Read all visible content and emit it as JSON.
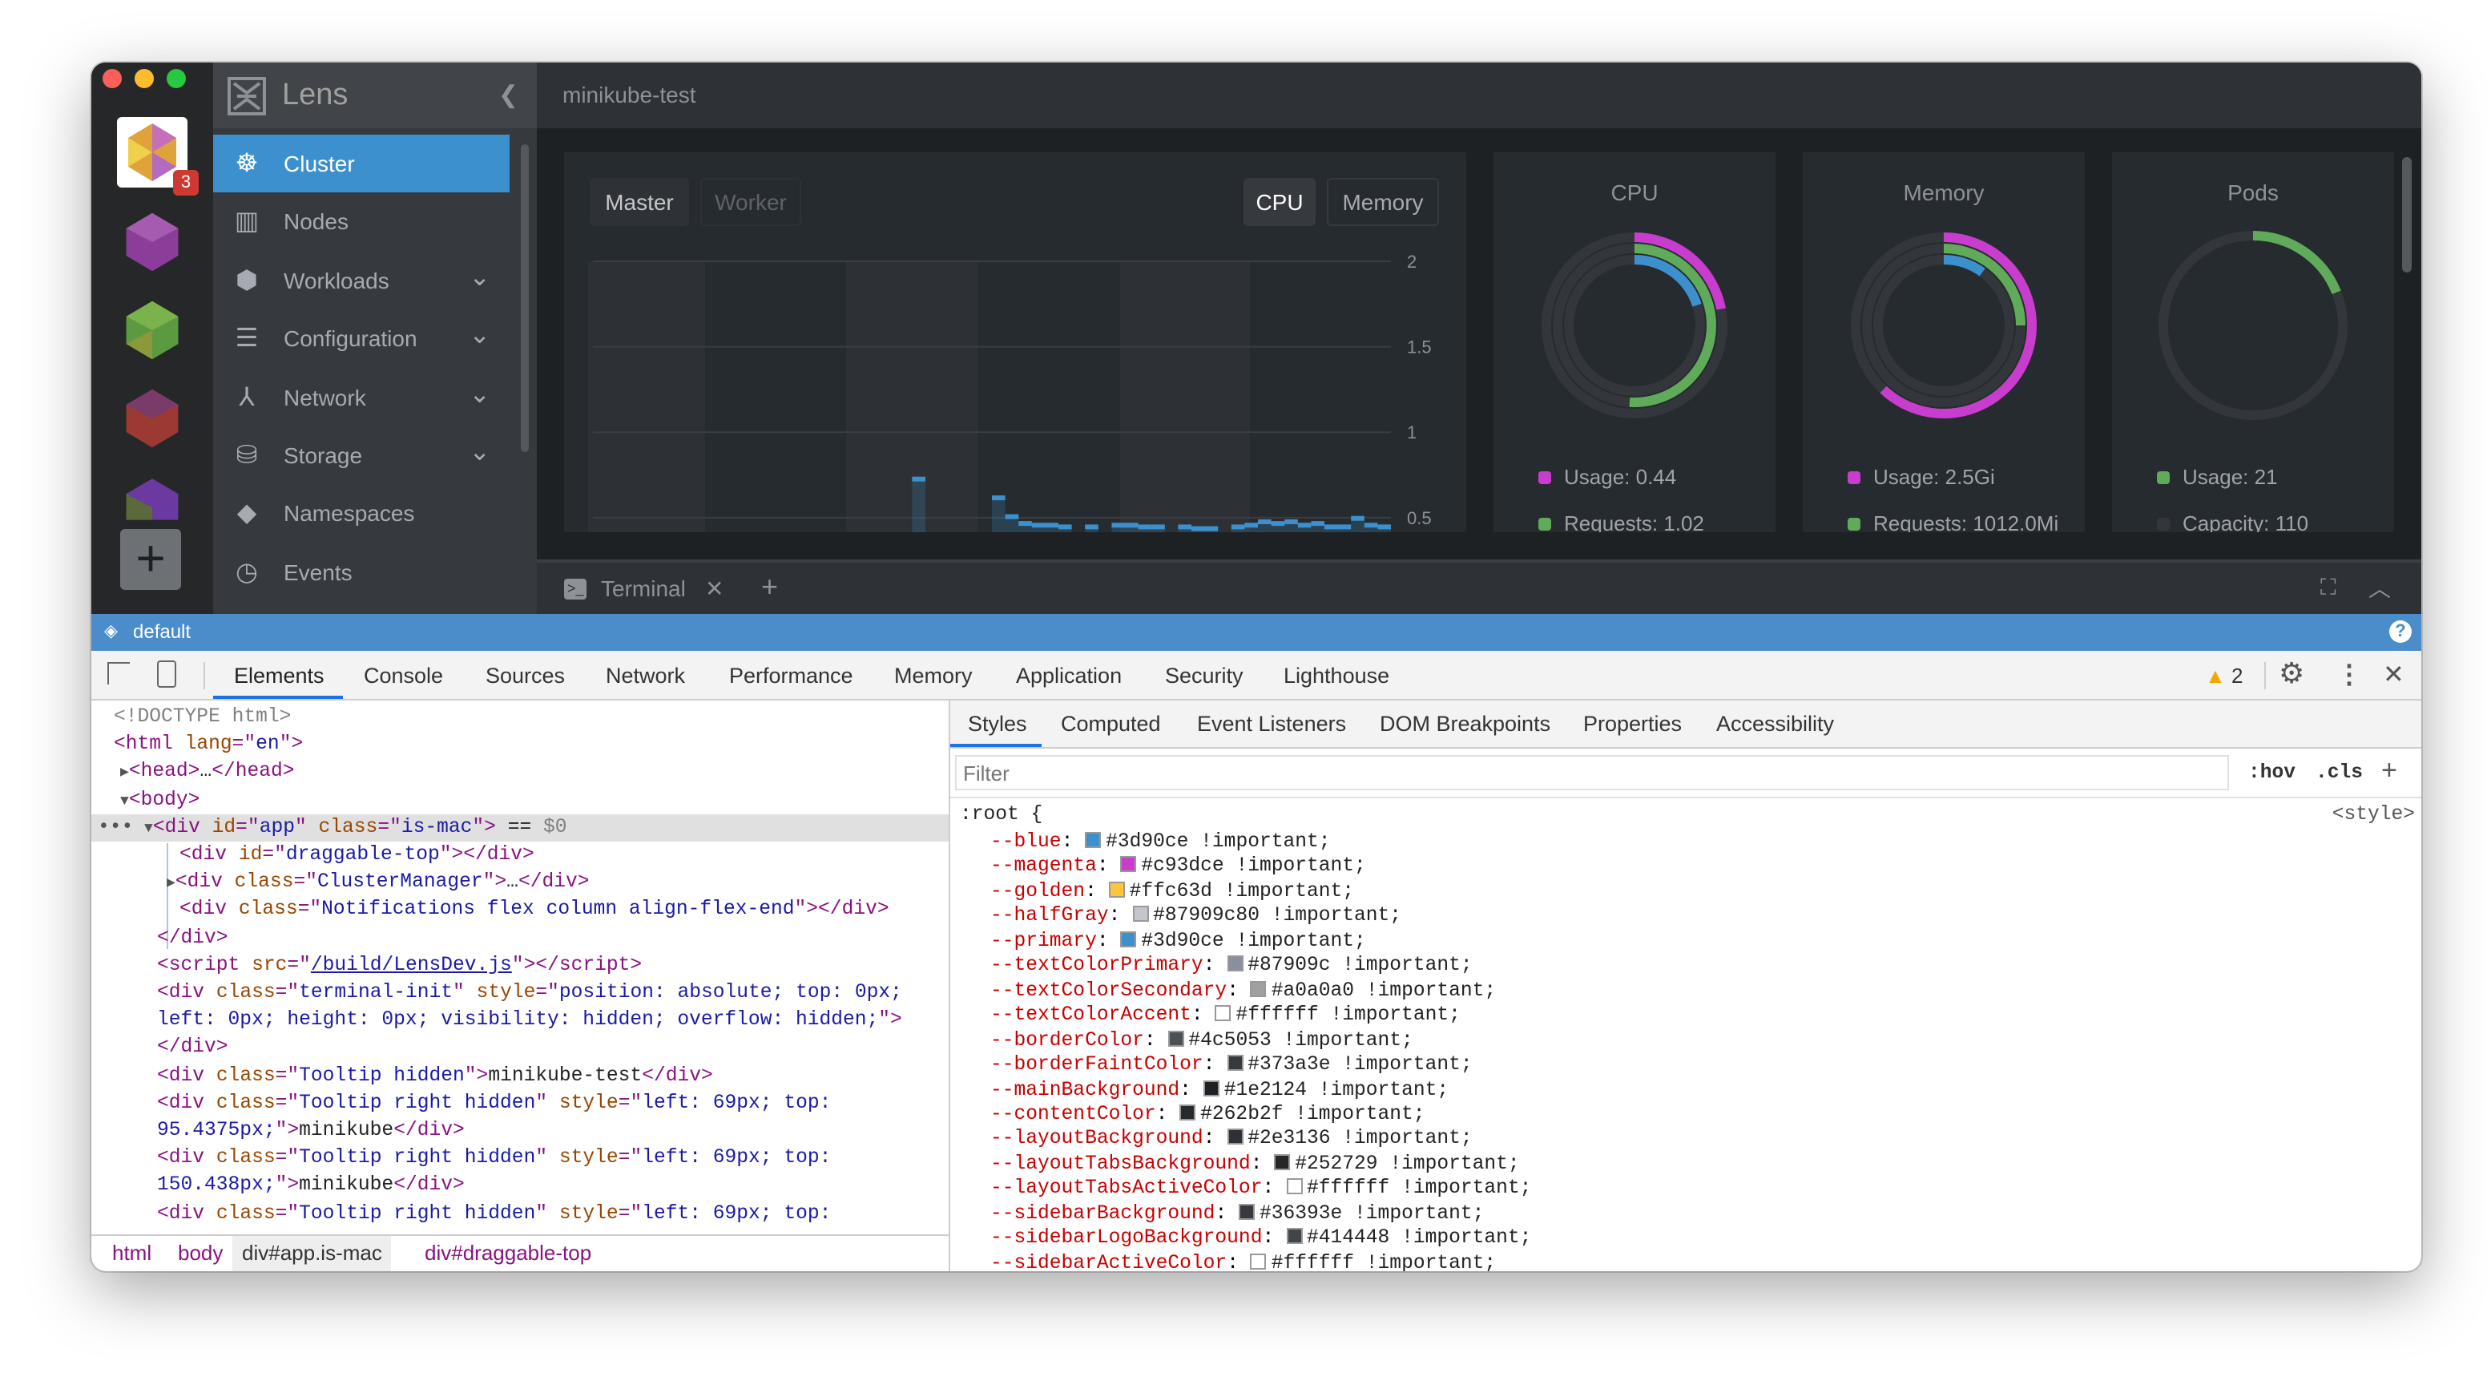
{
  "app": {
    "name": "Lens",
    "cluster_title": "minikube-test",
    "badge_count": "3",
    "add_label": "+"
  },
  "colors": {
    "primary": "#3d90ce",
    "magenta": "#c93dce",
    "green": "#5fab5a",
    "sidebar": "#36393e",
    "layout": "#2e3136",
    "main": "#1e2124",
    "content": "#262b2f"
  },
  "sidebar": {
    "collapse_icon": "chevron-left-icon",
    "items": [
      {
        "label": "Cluster",
        "icon": "helm-wheel-icon",
        "active": true,
        "expandable": false
      },
      {
        "label": "Nodes",
        "icon": "nodes-icon",
        "expandable": false
      },
      {
        "label": "Workloads",
        "icon": "workloads-icon",
        "expandable": true
      },
      {
        "label": "Configuration",
        "icon": "list-icon",
        "expandable": true
      },
      {
        "label": "Network",
        "icon": "network-icon",
        "expandable": true
      },
      {
        "label": "Storage",
        "icon": "database-icon",
        "expandable": true
      },
      {
        "label": "Namespaces",
        "icon": "layers-icon",
        "expandable": false
      },
      {
        "label": "Events",
        "icon": "clock-icon",
        "expandable": false
      }
    ]
  },
  "metrics": {
    "node_tabs": [
      "Master",
      "Worker"
    ],
    "active_node_tab": "Master",
    "resource_tabs": [
      "CPU",
      "Memory"
    ],
    "active_resource_tab": "CPU"
  },
  "chart_data": {
    "type": "bar",
    "xlabel": "",
    "ylabel": "",
    "ylim": [
      0.415,
      2
    ],
    "yticks": [
      "2",
      "1.5",
      "1",
      "0.5"
    ],
    "ytick_values": [
      2,
      1.5,
      1,
      0.5
    ],
    "grid": true,
    "series": [
      {
        "values": [
          null,
          null,
          null,
          null,
          null,
          null,
          null,
          null,
          null,
          null,
          null,
          null,
          null,
          null,
          null,
          null,
          null,
          null,
          null,
          null,
          null,
          null,
          null,
          null,
          0.74,
          null,
          null,
          null,
          null,
          null,
          0.63,
          0.52,
          0.48,
          0.47,
          0.47,
          0.46,
          null,
          0.46,
          null,
          0.47,
          0.47,
          0.46,
          0.46,
          null,
          0.46,
          0.45,
          0.45,
          null,
          0.46,
          0.47,
          0.49,
          0.48,
          0.49,
          0.47,
          0.48,
          0.46,
          0.46,
          0.51,
          0.47,
          0.46
        ]
      }
    ]
  },
  "cards": [
    {
      "title": "CPU",
      "rings": [
        {
          "color": "#c93dce",
          "fraction": 0.22
        },
        {
          "color": "#5fab5a",
          "fraction": 0.51
        },
        {
          "color": "#3d90ce",
          "fraction": 0.2
        }
      ],
      "legend": [
        {
          "color": "#c93dce",
          "label": "Usage: 0.44"
        },
        {
          "color": "#5fab5a",
          "label": "Requests: 1.02"
        }
      ]
    },
    {
      "title": "Memory",
      "rings": [
        {
          "color": "#c93dce",
          "fraction": 0.62
        },
        {
          "color": "#5fab5a",
          "fraction": 0.25
        },
        {
          "color": "#3d90ce",
          "fraction": 0.1
        }
      ],
      "legend": [
        {
          "color": "#c93dce",
          "label": "Usage: 2.5Gi"
        },
        {
          "color": "#5fab5a",
          "label": "Requests: 1012.0Mi"
        }
      ]
    },
    {
      "title": "Pods",
      "rings": [
        {
          "color": "#5fab5a",
          "fraction": 0.19
        }
      ],
      "legend": [
        {
          "color": "#5fab5a",
          "label": "Usage: 21"
        },
        {
          "color": "#33373c",
          "label": "Capacity: 110"
        }
      ]
    }
  ],
  "terminal": {
    "tab_label": "Terminal",
    "close": "✕",
    "add": "+"
  },
  "statusbar": {
    "namespace": "default",
    "help": "?"
  },
  "devtools": {
    "tabs": [
      "Elements",
      "Console",
      "Sources",
      "Network",
      "Performance",
      "Memory",
      "Application",
      "Security",
      "Lighthouse"
    ],
    "active_tab": "Elements",
    "warning_count": "2",
    "elements": [
      {
        "indent": 0,
        "arrow": "",
        "tokens": [
          [
            "cm",
            "<!DOCTYPE html>"
          ]
        ]
      },
      {
        "indent": 0,
        "arrow": "",
        "tokens": [
          [
            "tg",
            "<html "
          ],
          [
            "an",
            "lang"
          ],
          [
            "tg",
            "=\""
          ],
          [
            "av",
            "en"
          ],
          [
            "tg",
            "\">"
          ]
        ]
      },
      {
        "indent": 1,
        "arrow": "▶",
        "tokens": [
          [
            "tg",
            "<head>"
          ],
          [
            "tx",
            "…"
          ],
          [
            "tg",
            "</head>"
          ]
        ]
      },
      {
        "indent": 1,
        "arrow": "▼",
        "tokens": [
          [
            "tg",
            "<body>"
          ]
        ]
      },
      {
        "indent": 2,
        "arrow": "▼",
        "selected": true,
        "tokens": [
          [
            "tg",
            "<div "
          ],
          [
            "an",
            "id"
          ],
          [
            "tg",
            "=\""
          ],
          [
            "av",
            "app"
          ],
          [
            "tg",
            "\" "
          ],
          [
            "an",
            "class"
          ],
          [
            "tg",
            "=\""
          ],
          [
            "av",
            "is-mac"
          ],
          [
            "tg",
            "\">"
          ],
          [
            "tx",
            " == "
          ],
          [
            "cm",
            "$0"
          ]
        ]
      },
      {
        "indent": 3,
        "arrow": "",
        "tokens": [
          [
            "tg",
            "<div "
          ],
          [
            "an",
            "id"
          ],
          [
            "tg",
            "=\""
          ],
          [
            "av",
            "draggable-top"
          ],
          [
            "tg",
            "\"></div>"
          ]
        ]
      },
      {
        "indent": 3,
        "arrow": "▶",
        "tokens": [
          [
            "tg",
            "<div "
          ],
          [
            "an",
            "class"
          ],
          [
            "tg",
            "=\""
          ],
          [
            "av",
            "ClusterManager"
          ],
          [
            "tg",
            "\">"
          ],
          [
            "tx",
            "…"
          ],
          [
            "tg",
            "</div>"
          ]
        ]
      },
      {
        "indent": 3,
        "arrow": "",
        "tokens": [
          [
            "tg",
            "<div "
          ],
          [
            "an",
            "class"
          ],
          [
            "tg",
            "=\""
          ],
          [
            "av",
            "Notifications flex column align-flex-end"
          ],
          [
            "tg",
            "\"></div>"
          ]
        ]
      },
      {
        "indent": 2,
        "arrow": "",
        "tokens": [
          [
            "tg",
            "</div>"
          ]
        ]
      },
      {
        "indent": 2,
        "arrow": "",
        "tokens": [
          [
            "tg",
            "<script "
          ],
          [
            "an",
            "src"
          ],
          [
            "tg",
            "=\""
          ],
          [
            "lk",
            "/build/LensDev.js"
          ],
          [
            "tg",
            "\"></script>"
          ]
        ]
      },
      {
        "indent": 2,
        "arrow": "",
        "tokens": [
          [
            "tg",
            "<div "
          ],
          [
            "an",
            "class"
          ],
          [
            "tg",
            "=\""
          ],
          [
            "av",
            "terminal-init"
          ],
          [
            "tg",
            "\" "
          ],
          [
            "an",
            "style"
          ],
          [
            "tg",
            "=\""
          ],
          [
            "av",
            "position: absolute; top: 0px;"
          ]
        ]
      },
      {
        "indent": 2,
        "arrow": "",
        "tokens": [
          [
            "av",
            "left: 0px; height: 0px; visibility: hidden; overflow: hidden;"
          ],
          [
            "tg",
            "\">"
          ]
        ]
      },
      {
        "indent": 2,
        "arrow": "",
        "tokens": [
          [
            "tg",
            "</div>"
          ]
        ]
      },
      {
        "indent": 2,
        "arrow": "",
        "tokens": [
          [
            "tg",
            "<div "
          ],
          [
            "an",
            "class"
          ],
          [
            "tg",
            "=\""
          ],
          [
            "av",
            "Tooltip hidden"
          ],
          [
            "tg",
            "\">"
          ],
          [
            "tx",
            "minikube-test"
          ],
          [
            "tg",
            "</div>"
          ]
        ]
      },
      {
        "indent": 2,
        "arrow": "",
        "tokens": [
          [
            "tg",
            "<div "
          ],
          [
            "an",
            "class"
          ],
          [
            "tg",
            "=\""
          ],
          [
            "av",
            "Tooltip right hidden"
          ],
          [
            "tg",
            "\" "
          ],
          [
            "an",
            "style"
          ],
          [
            "tg",
            "=\""
          ],
          [
            "av",
            "left: 69px; top:"
          ]
        ]
      },
      {
        "indent": 2,
        "arrow": "",
        "tokens": [
          [
            "av",
            "95.4375px;"
          ],
          [
            "tg",
            "\">"
          ],
          [
            "tx",
            "minikube"
          ],
          [
            "tg",
            "</div>"
          ]
        ]
      },
      {
        "indent": 2,
        "arrow": "",
        "tokens": [
          [
            "tg",
            "<div "
          ],
          [
            "an",
            "class"
          ],
          [
            "tg",
            "=\""
          ],
          [
            "av",
            "Tooltip right hidden"
          ],
          [
            "tg",
            "\" "
          ],
          [
            "an",
            "style"
          ],
          [
            "tg",
            "=\""
          ],
          [
            "av",
            "left: 69px; top:"
          ]
        ]
      },
      {
        "indent": 2,
        "arrow": "",
        "tokens": [
          [
            "av",
            "150.438px;"
          ],
          [
            "tg",
            "\">"
          ],
          [
            "tx",
            "minikube"
          ],
          [
            "tg",
            "</div>"
          ]
        ]
      },
      {
        "indent": 2,
        "arrow": "",
        "tokens": [
          [
            "tg",
            "<div "
          ],
          [
            "an",
            "class"
          ],
          [
            "tg",
            "=\""
          ],
          [
            "av",
            "Tooltip right hidden"
          ],
          [
            "tg",
            "\" "
          ],
          [
            "an",
            "style"
          ],
          [
            "tg",
            "=\""
          ],
          [
            "av",
            "left: 69px; top:"
          ]
        ]
      }
    ],
    "breadcrumb": [
      "html",
      "body",
      "div#app.is-mac",
      "div#draggable-top"
    ],
    "styles_tabs": [
      "Styles",
      "Computed",
      "Event Listeners",
      "DOM Breakpoints",
      "Properties",
      "Accessibility"
    ],
    "filter_placeholder": "Filter",
    "hov": ":hov",
    "cls": ".cls",
    "add_rule": "+",
    "rule_selector": ":root {",
    "rule_source": "<style>",
    "properties": [
      [
        "--blue",
        "#3d90ce",
        "#3d90ce !important;"
      ],
      [
        "--magenta",
        "#c93dce",
        "#c93dce !important;"
      ],
      [
        "--golden",
        "#ffc63d",
        "#ffc63d !important;"
      ],
      [
        "--halfGray",
        "#87909c80",
        "#87909c80 !important;"
      ],
      [
        "--primary",
        "#3d90ce",
        "#3d90ce !important;"
      ],
      [
        "--textColorPrimary",
        "#87909c",
        "#87909c !important;"
      ],
      [
        "--textColorSecondary",
        "#a0a0a0",
        "#a0a0a0 !important;"
      ],
      [
        "--textColorAccent",
        "#ffffff",
        "#ffffff !important;"
      ],
      [
        "--borderColor",
        "#4c5053",
        "#4c5053 !important;"
      ],
      [
        "--borderFaintColor",
        "#373a3e",
        "#373a3e !important;"
      ],
      [
        "--mainBackground",
        "#1e2124",
        "#1e2124 !important;"
      ],
      [
        "--contentColor",
        "#262b2f",
        "#262b2f !important;"
      ],
      [
        "--layoutBackground",
        "#2e3136",
        "#2e3136 !important;"
      ],
      [
        "--layoutTabsBackground",
        "#252729",
        "#252729 !important;"
      ],
      [
        "--layoutTabsActiveColor",
        "#ffffff",
        "#ffffff !important;"
      ],
      [
        "--sidebarBackground",
        "#36393e",
        "#36393e !important;"
      ],
      [
        "--sidebarLogoBackground",
        "#414448",
        "#414448 !important;"
      ],
      [
        "--sidebarActiveColor",
        "#ffffff",
        "#ffffff !important;"
      ]
    ]
  }
}
